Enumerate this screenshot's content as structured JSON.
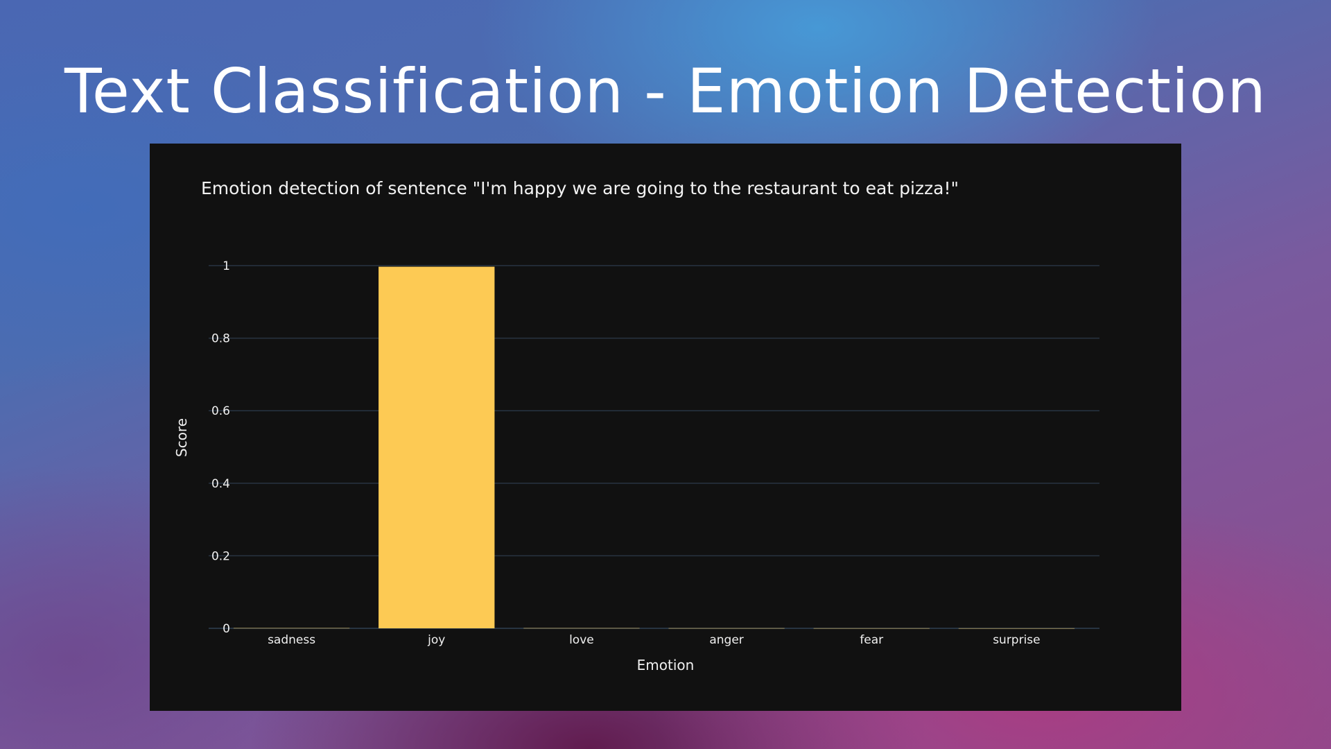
{
  "slide": {
    "title": "Text Classification - Emotion Detection"
  },
  "chart_data": {
    "type": "bar",
    "title": "Emotion detection of sentence \"I'm happy we are going to the restaurant to eat pizza!\"",
    "xlabel": "Emotion",
    "ylabel": "Score",
    "categories": [
      "sadness",
      "joy",
      "love",
      "anger",
      "fear",
      "surprise"
    ],
    "values": [
      0.0007,
      0.997,
      0.0006,
      0.0004,
      0.0003,
      0.0002
    ],
    "ylim": [
      0,
      1
    ],
    "yticks": [
      0,
      0.2,
      0.4,
      0.6,
      0.8,
      1
    ],
    "ytick_labels": [
      "0",
      "0.2",
      "0.4",
      "0.6",
      "0.8",
      "1"
    ],
    "grid": true,
    "legend": "none",
    "colors": {
      "bar": "#fdca54",
      "background": "#111111",
      "grid": "#283442",
      "text": "#f0f0f0"
    }
  }
}
